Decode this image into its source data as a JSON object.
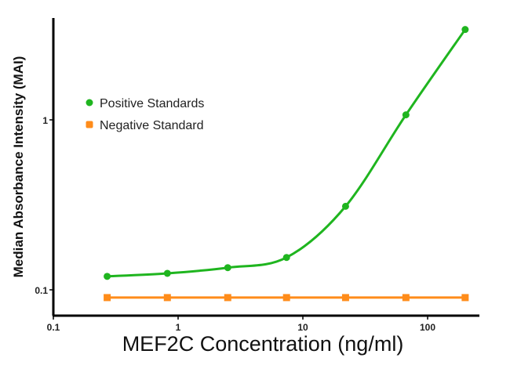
{
  "chart_data": {
    "type": "line",
    "title": "",
    "xlabel": "MEF2C Concentration (ng/ml)",
    "ylabel": "Median Absorbance Intensity (MAI)",
    "x_scale": "log",
    "y_scale": "log",
    "xlim": [
      0.1,
      257
    ],
    "ylim": [
      0.07,
      4.0
    ],
    "x_ticks": [
      {
        "v": 0.1,
        "label": "0.1"
      },
      {
        "v": 1,
        "label": "1"
      },
      {
        "v": 10,
        "label": "10"
      },
      {
        "v": 100,
        "label": "100"
      }
    ],
    "y_ticks": [
      {
        "v": 0.1,
        "label": "0.1"
      },
      {
        "v": 1,
        "label": "1"
      }
    ],
    "grid": false,
    "legend_position": "upper-left",
    "series": [
      {
        "name": "Positive Standards",
        "color": "#1fb51f",
        "marker": "circle",
        "x": [
          0.27,
          0.82,
          2.5,
          7.4,
          22,
          67,
          200
        ],
        "y": [
          0.12,
          0.125,
          0.135,
          0.155,
          0.31,
          1.07,
          3.4
        ]
      },
      {
        "name": "Negative Standard",
        "color": "#ff8c1a",
        "marker": "square",
        "x": [
          0.27,
          0.82,
          2.5,
          7.4,
          22,
          67,
          200
        ],
        "y": [
          0.09,
          0.09,
          0.09,
          0.09,
          0.09,
          0.09,
          0.09
        ]
      }
    ]
  }
}
